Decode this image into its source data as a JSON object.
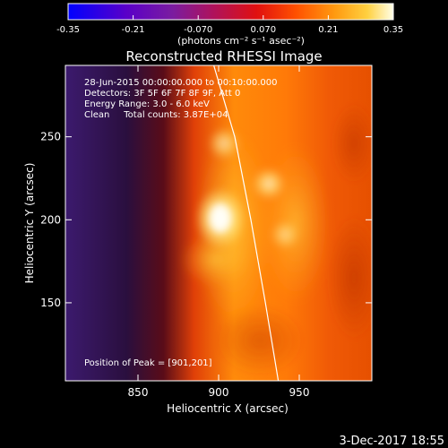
{
  "chart_data": {
    "type": "heatmap",
    "title": "Reconstructed RHESSI Image",
    "xlabel": "Heliocentric X (arcsec)",
    "ylabel": "Heliocentric Y (arcsec)",
    "xlim": [
      805,
      995
    ],
    "ylim": [
      103,
      293
    ],
    "x_ticks": [
      850,
      900,
      950
    ],
    "y_ticks": [
      150,
      200,
      250
    ],
    "colorbar": {
      "range": [
        -0.35,
        0.35
      ],
      "ticks": [
        "-0.35",
        "-0.21",
        "-0.070",
        "0.070",
        "0.21",
        "0.35"
      ],
      "unit_label": "(photons cm⁻² s⁻¹ asec⁻²)"
    },
    "annotations": [
      "28-Jun-2015 00:00:00.000 to 00:10:00.000",
      "Detectors: 3F 5F 6F 7F 8F 9F, Att 0",
      "Energy Range: 3.0 - 6.0 keV",
      "Clean     Total counts: 3.87E+04"
    ],
    "peak_label": "Position of Peak = [901,201]",
    "peak": [
      901,
      201
    ],
    "limb_curve": [
      [
        897,
        293
      ],
      [
        910,
        250
      ],
      [
        920,
        200
      ],
      [
        929,
        150
      ],
      [
        937,
        103
      ]
    ],
    "footer_date": "3-Dec-2017 18:55"
  }
}
